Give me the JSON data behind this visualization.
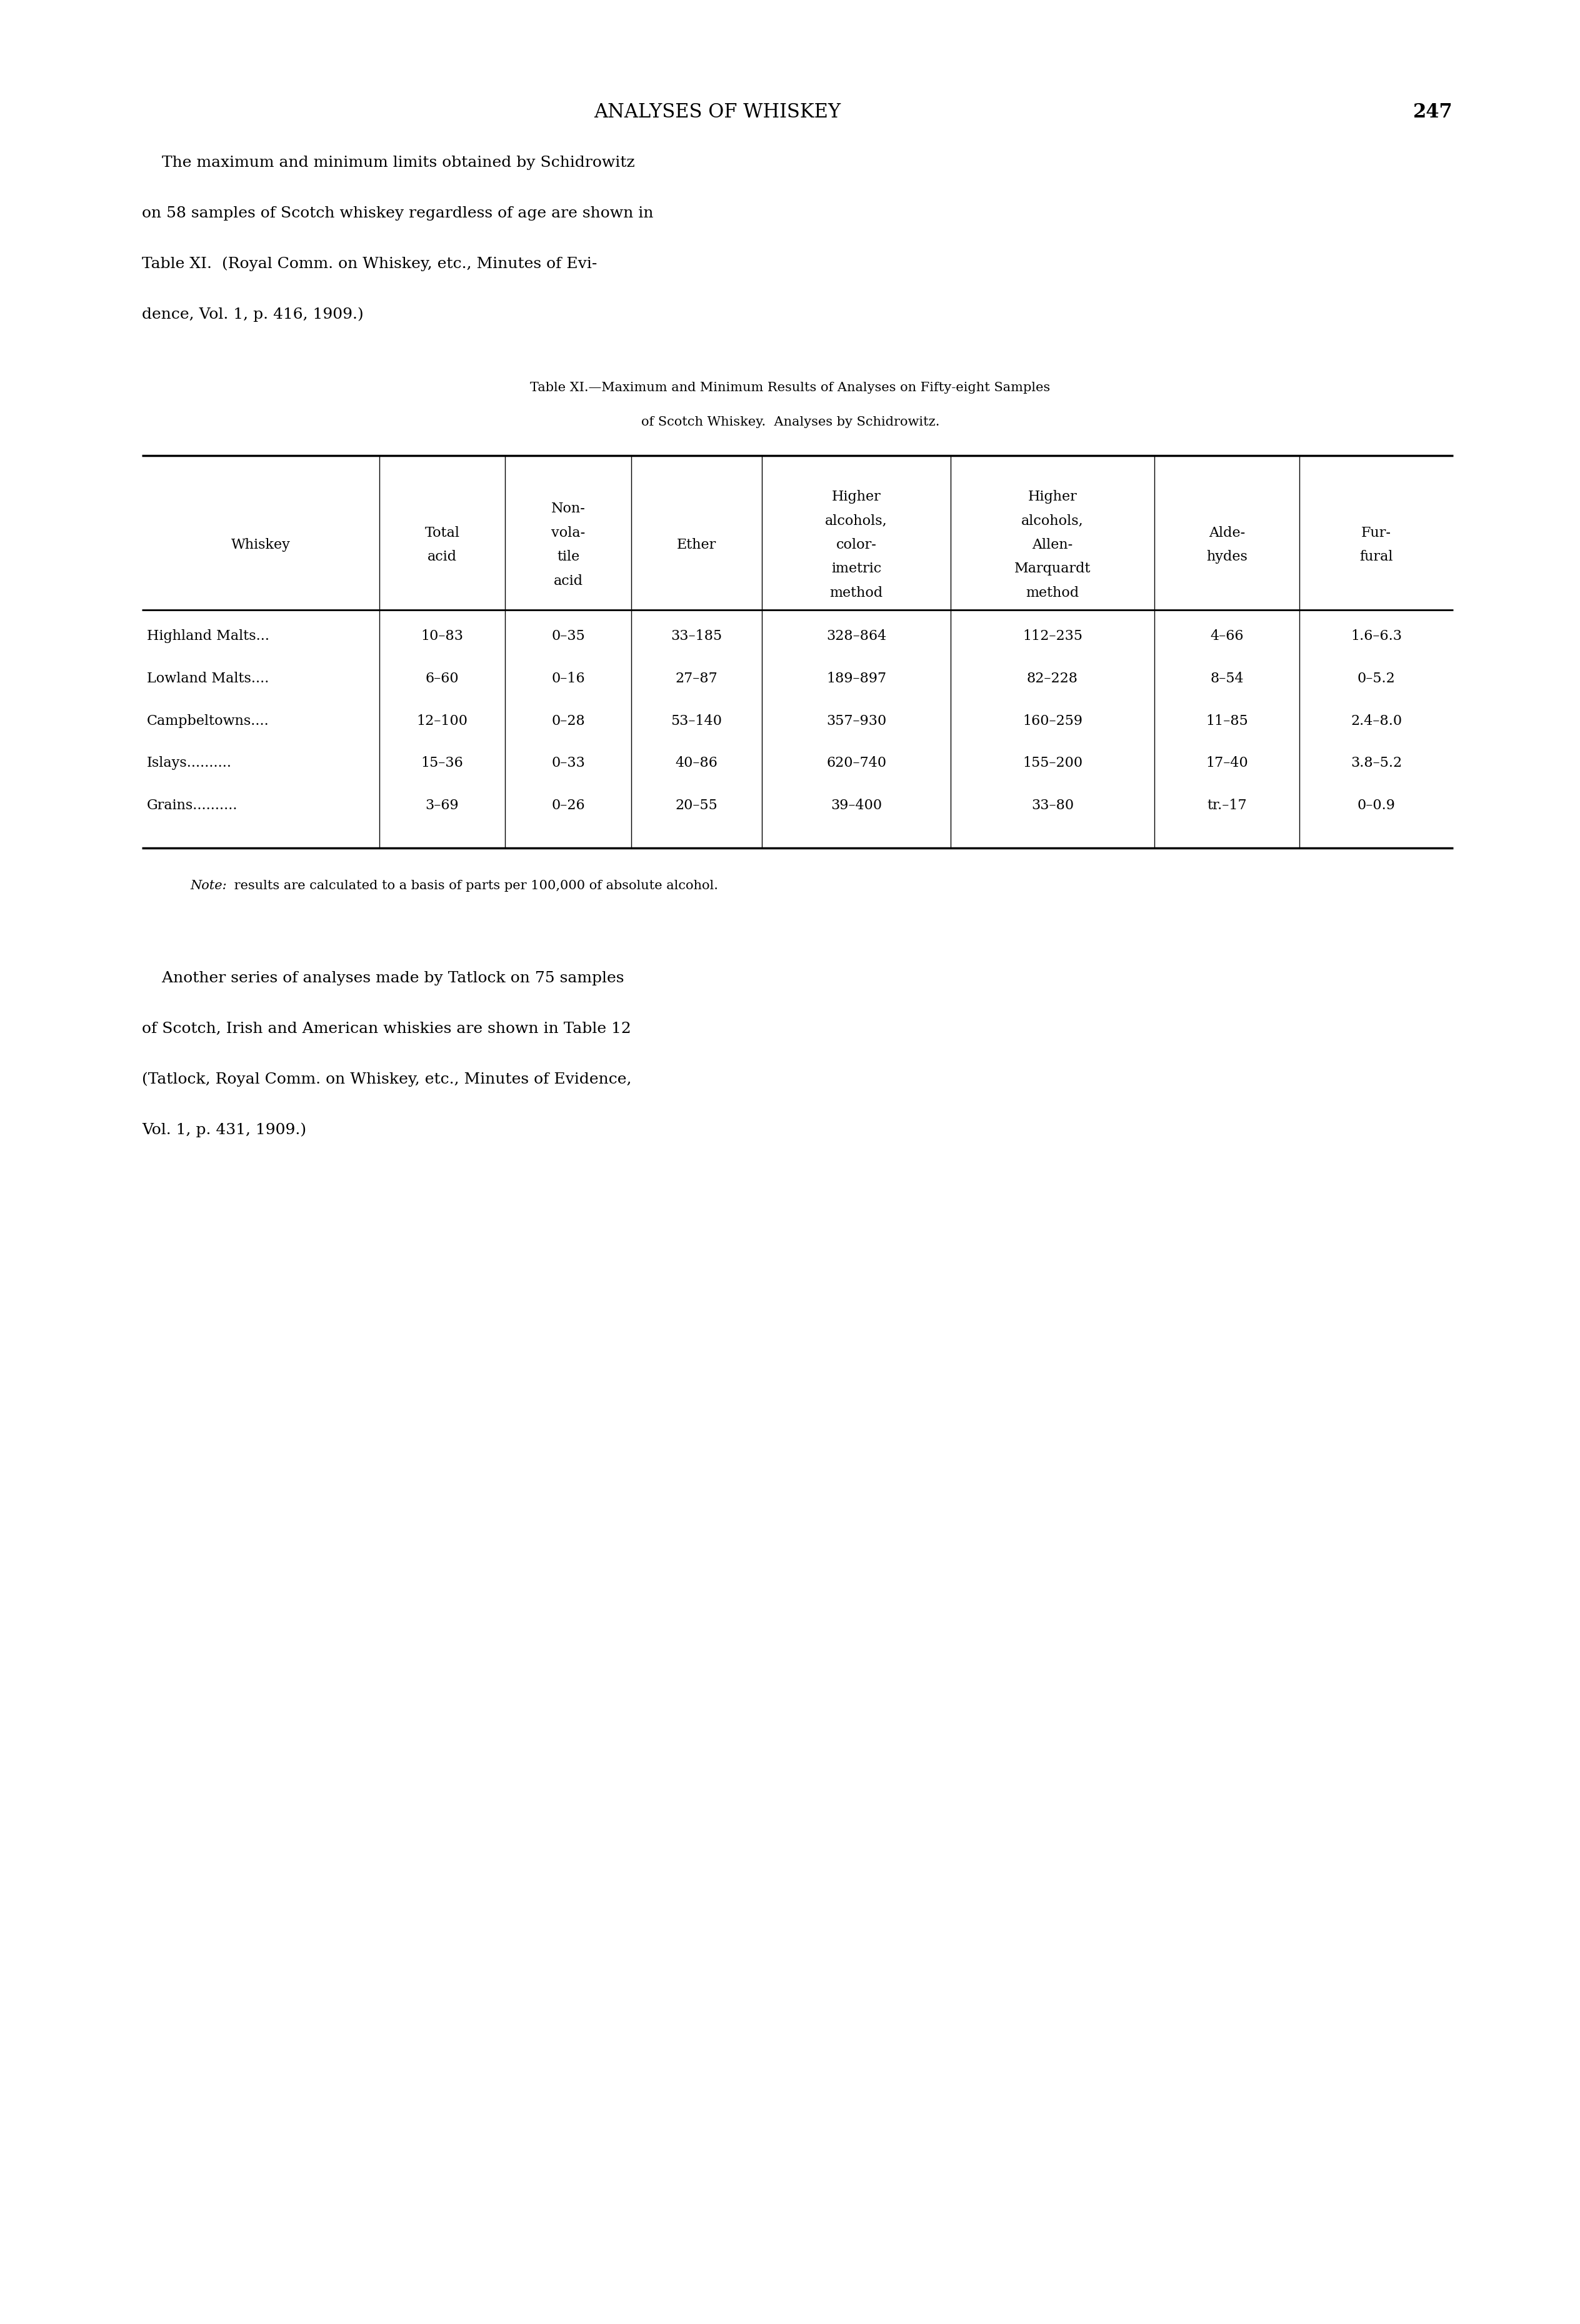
{
  "page_title": "ANALYSES OF WHISKEY",
  "page_number": "247",
  "body_text_1_lines": [
    "    The maximum and minimum limits obtained by Schidrowitz",
    "on 58 samples of Scotch whiskey regardless of age are shown in",
    "Table XI.  (Royal Comm. on Whiskey, etc., Minutes of Evi-",
    "dence, Vol. 1, p. 416, 1909.)"
  ],
  "table_caption_line1": "Table XI.—Maximum and Minimum Results of Analyses on Fifty-eight Samples",
  "table_caption_line2": "of Scotch Whiskey.  Analyses by Schidrowitz.",
  "header_texts": [
    "Whiskey",
    "Total\nacid",
    "Non-\nvola-\ntile\nacid",
    "Ether",
    "Higher\nalcohols,\ncolor-\nimetric\nmethod",
    "Higher\nalcohols,\nAllen-\nMarquardt\nmethod",
    "Alde-\nhydes",
    "Fur-\nfural"
  ],
  "rows": [
    [
      "Highland Malts...",
      "10–83",
      "0–35",
      "33–185",
      "328–864",
      "112–235",
      "4–66",
      "1.6–6.3"
    ],
    [
      "Lowland Malts....",
      "6–60",
      "0–16",
      "27–87",
      "189–897",
      "82–228",
      "8–54",
      "0–5.2"
    ],
    [
      "Campbeltowns....",
      "12–100",
      "0–28",
      "53–140",
      "357–930",
      "160–259",
      "11–85",
      "2.4–8.0"
    ],
    [
      "Islays..........",
      "15–36",
      "0–33",
      "40–86",
      "620–740",
      "155–200",
      "17–40",
      "3.8–5.2"
    ],
    [
      "Grains..........",
      "3–69",
      "0–26",
      "20–55",
      "39–400",
      "33–80",
      "tr.–17",
      "0–0.9"
    ]
  ],
  "note_italic": "Note:",
  "note_rest": " results are calculated to a basis of parts per 100,000 of absolute alcohol.",
  "body_text_2_lines": [
    "    Another series of analyses made by Tatlock on 75 samples",
    "of Scotch, Irish and American whiskies are shown in Table 12",
    "(Tatlock, Royal Comm. on Whiskey, etc., Minutes of Evidence,",
    "Vol. 1, p. 431, 1909.)"
  ],
  "bg_color": "#ffffff",
  "text_color": "#000000"
}
